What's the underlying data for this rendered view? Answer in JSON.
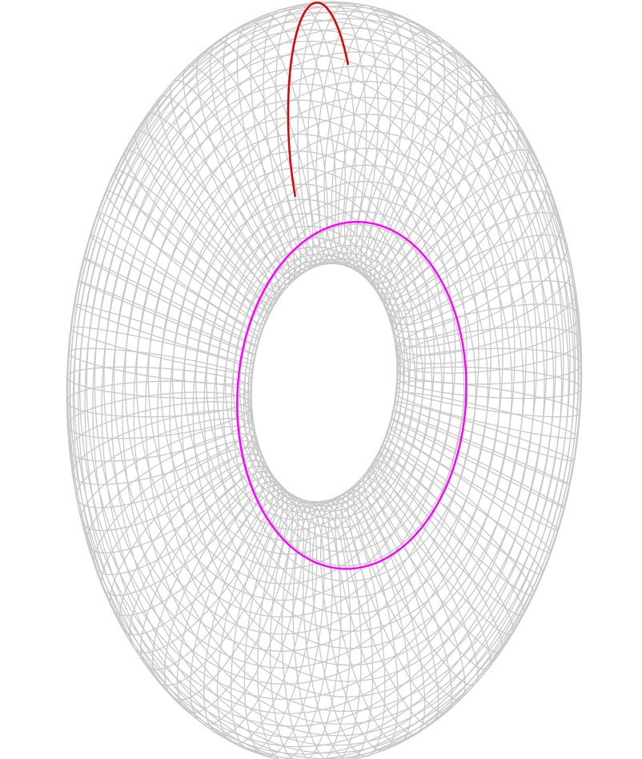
{
  "diagram": {
    "shape": "torus-wireframe",
    "mesh": {
      "toroidal_lines": 96,
      "poloidal_lines": 48,
      "color": "#c8c8c8"
    },
    "highlighted_curves": [
      {
        "kind": "meridian",
        "color": "#e00000"
      },
      {
        "kind": "parallel",
        "color": "#ff00ff"
      }
    ]
  }
}
